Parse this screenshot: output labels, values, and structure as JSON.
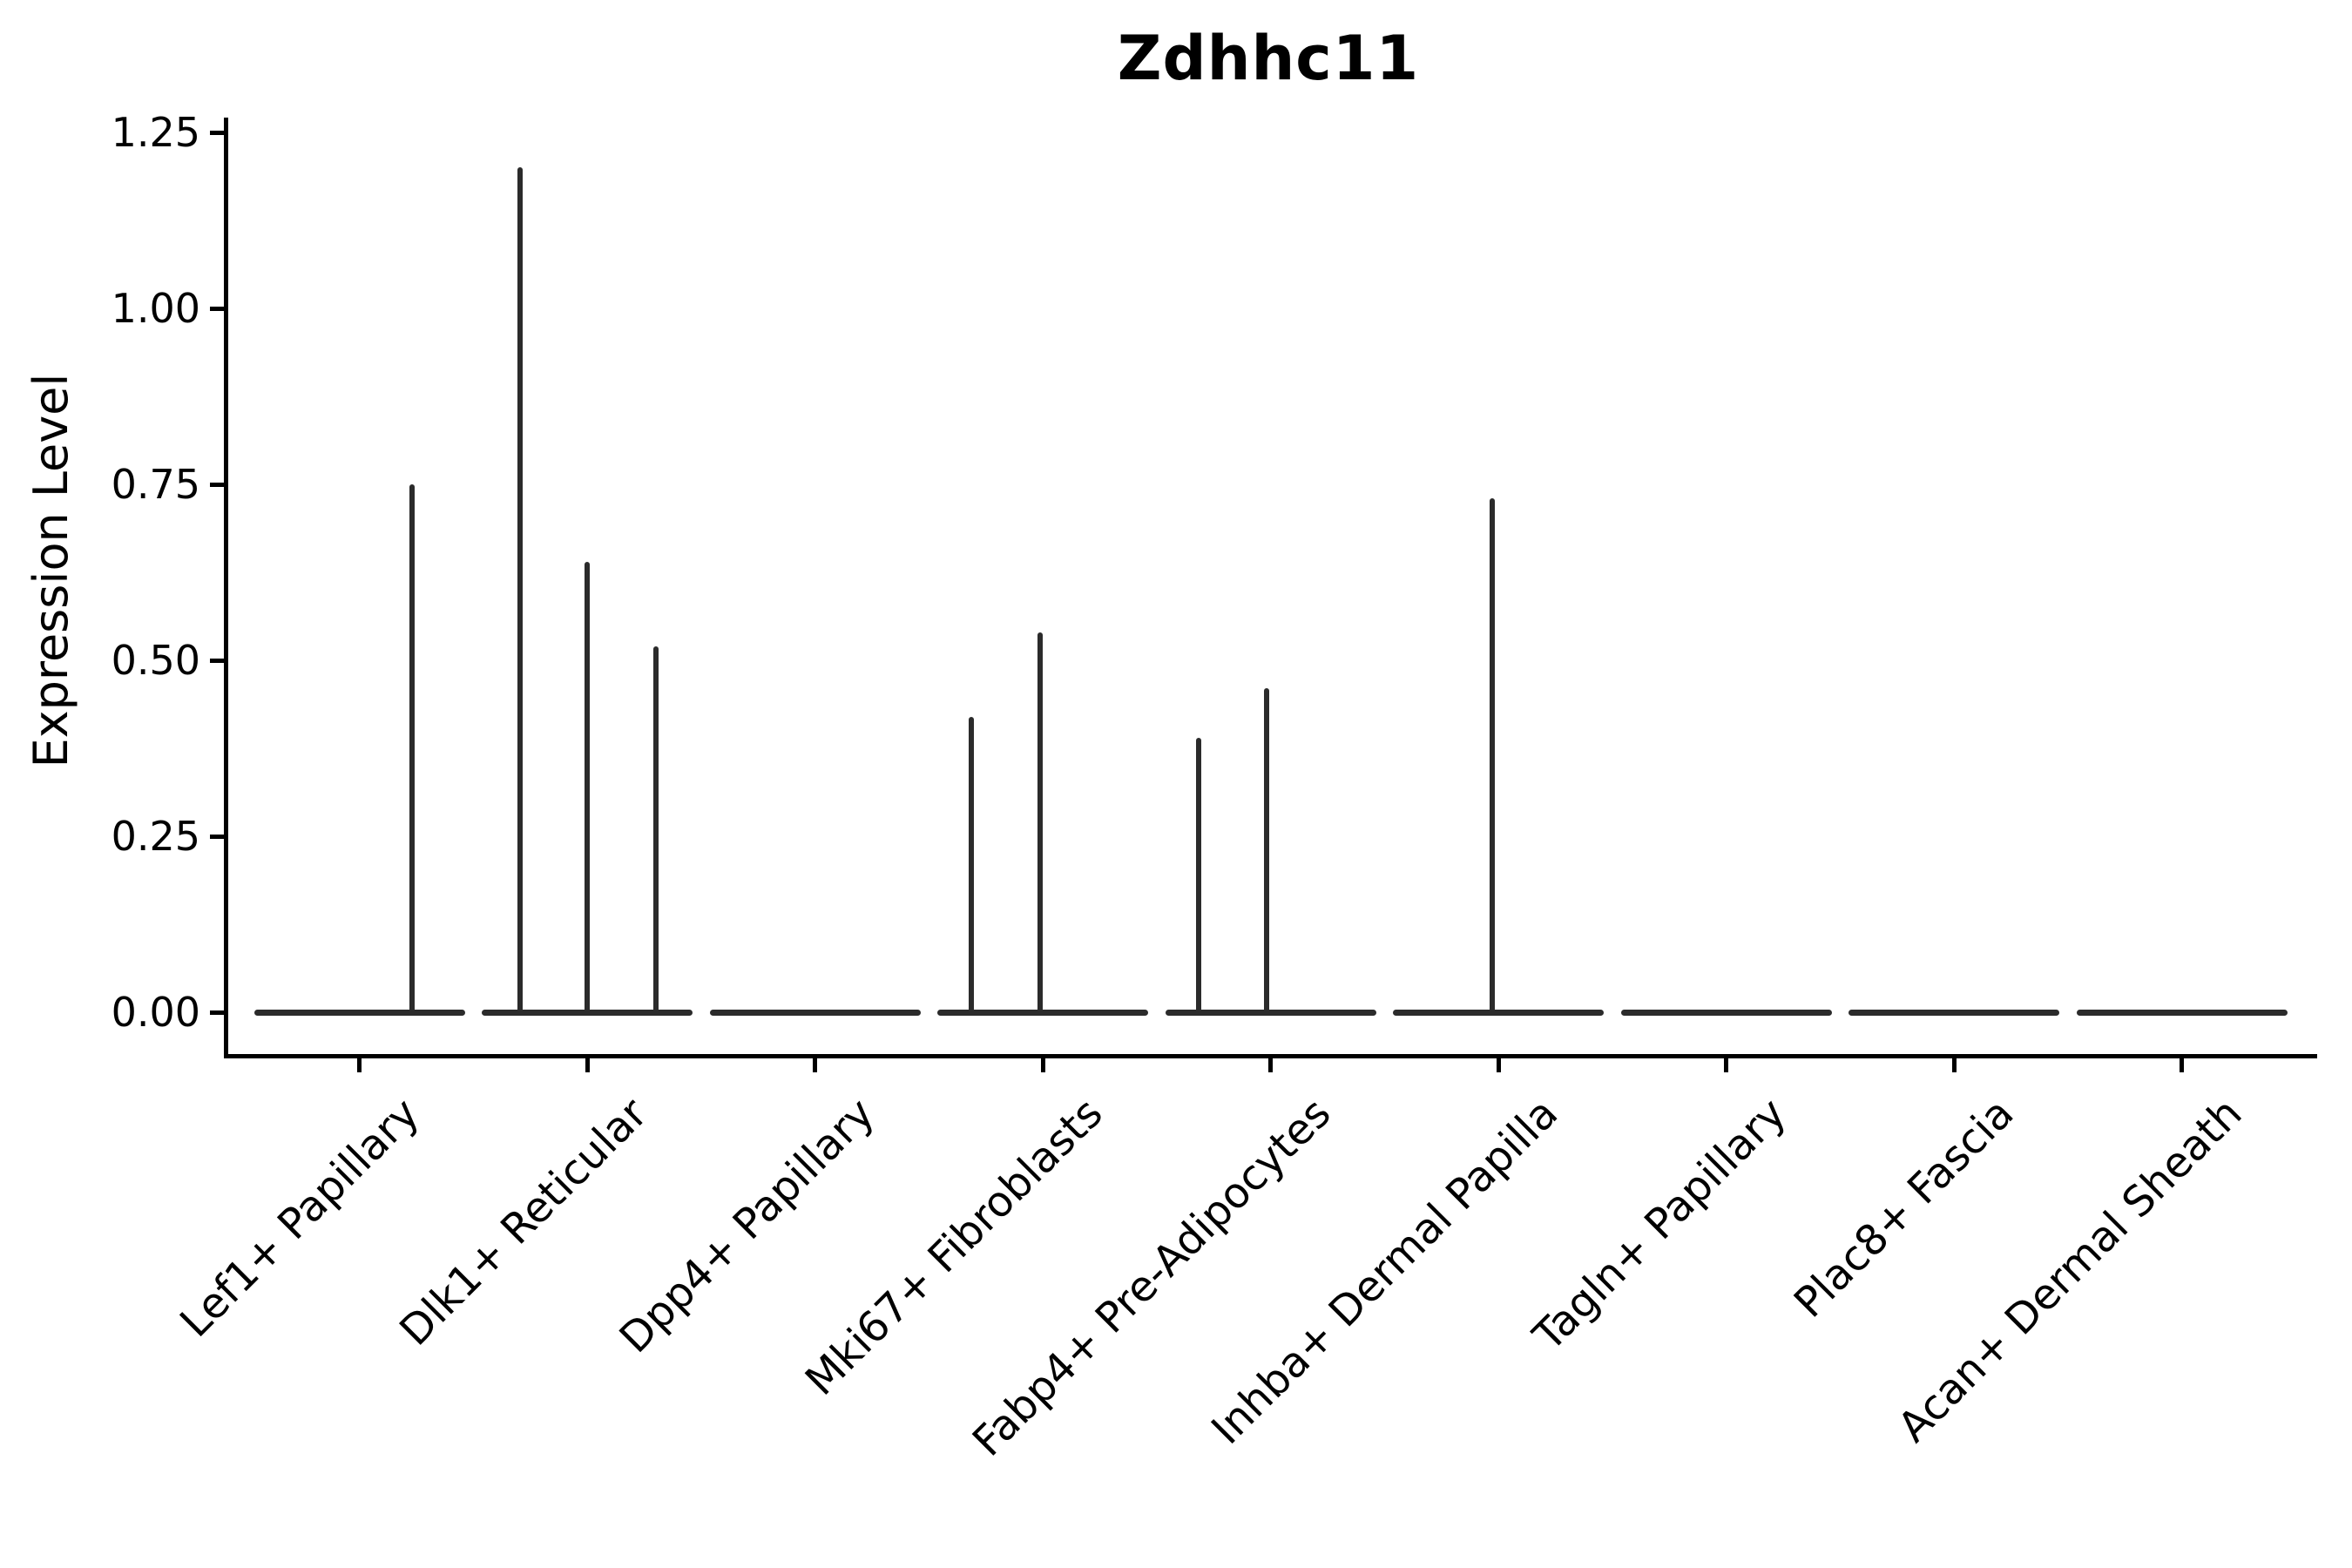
{
  "chart_data": {
    "type": "violin",
    "title": "Zdhhc11",
    "xlabel": "",
    "ylabel": "Expression Level",
    "ylim": [
      0,
      1.25
    ],
    "yticks": [
      {
        "label": "0.00",
        "value": 0.0
      },
      {
        "label": "0.25",
        "value": 0.25
      },
      {
        "label": "0.50",
        "value": 0.5
      },
      {
        "label": "0.75",
        "value": 0.75
      },
      {
        "label": "1.00",
        "value": 1.0
      },
      {
        "label": "1.25",
        "value": 1.25
      }
    ],
    "categories": [
      "Lef1+ Papillary",
      "Dlk1+ Reticular",
      "Dpp4+ Papillary",
      "Mki67+ Fibroblasts",
      "Fabp4+ Pre-Adipocytes",
      "Inhba+ Dermal Papilla",
      "Tagln+ Papillary",
      "Plac8+ Fascia",
      "Acan+ Dermal Sheath"
    ],
    "xticklabel_rotation_deg": 45,
    "grid": false,
    "legend": null,
    "violins": [
      {
        "category": "Lef1+ Papillary",
        "baseline_value": 0,
        "spikes": [
          {
            "dx": 60,
            "value": 0.75
          }
        ]
      },
      {
        "category": "Dlk1+ Reticular",
        "baseline_value": 0,
        "spikes": [
          {
            "dx": -77,
            "value": 1.2
          },
          {
            "dx": 0,
            "value": 0.64
          },
          {
            "dx": 79,
            "value": 0.52
          }
        ]
      },
      {
        "category": "Dpp4+ Papillary",
        "baseline_value": 0,
        "spikes": []
      },
      {
        "category": "Mki67+ Fibroblasts",
        "baseline_value": 0,
        "spikes": [
          {
            "dx": -82,
            "value": 0.42
          },
          {
            "dx": -3,
            "value": 0.54
          }
        ]
      },
      {
        "category": "Fabp4+ Pre-Adipocytes",
        "baseline_value": 0,
        "spikes": [
          {
            "dx": -83,
            "value": 0.39
          },
          {
            "dx": -5,
            "value": 0.46
          }
        ]
      },
      {
        "category": "Inhba+ Dermal Papilla",
        "baseline_value": 0,
        "spikes": [
          {
            "dx": -7,
            "value": 0.73
          }
        ]
      },
      {
        "category": "Tagln+ Papillary",
        "baseline_value": 0,
        "spikes": []
      },
      {
        "category": "Plac8+ Fascia",
        "baseline_value": 0,
        "spikes": []
      },
      {
        "category": "Acan+ Dermal Sheath",
        "baseline_value": 0,
        "spikes": []
      }
    ],
    "colors": {
      "violin": "#2b2b2b",
      "axis": "#000000",
      "text": "#000000",
      "background": "#ffffff"
    }
  }
}
